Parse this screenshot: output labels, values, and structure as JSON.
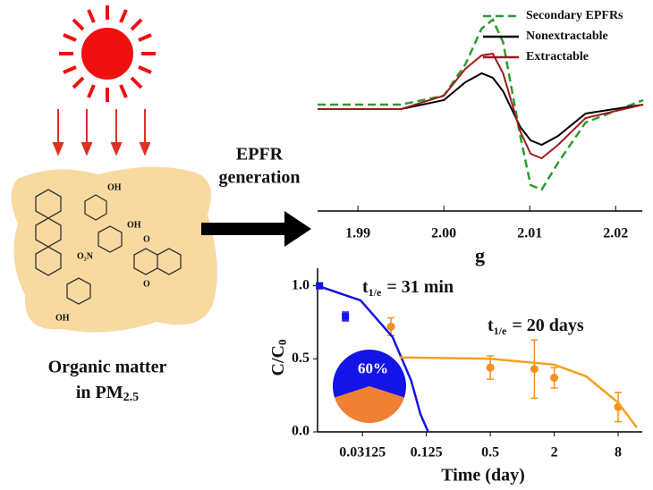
{
  "labels": {
    "process": [
      "EPFR",
      "generation"
    ],
    "matter": "Organic matter",
    "pm": "in PM",
    "pm_sub": "2.5",
    "molecules": [
      "OH",
      "OH",
      "O₂N",
      "OH",
      "O",
      "O"
    ]
  },
  "chart_data": [
    {
      "type": "line",
      "xlabel": "g",
      "xlim": [
        1.9853,
        2.0231
      ],
      "ylim": [
        -1.1,
        1.1
      ],
      "xticks": [
        1.99,
        {
          "value": 2.0,
          "label": "2.00"
        },
        2.01,
        2.02
      ],
      "x": [
        1.9853,
        1.995,
        2.0,
        2.0025,
        2.0044,
        2.0057,
        2.0069,
        2.0089,
        2.0101,
        2.0114,
        2.0133,
        2.0165,
        2.0232
      ],
      "series": [
        {
          "name": "Secondary EPFRs",
          "color": "#2e9a2e",
          "dashed": true,
          "values": [
            0.05,
            0.05,
            0.15,
            0.5,
            0.9,
            1.0,
            0.75,
            -0.3,
            -0.85,
            -0.9,
            -0.6,
            -0.15,
            0.1
          ]
        },
        {
          "name": "Nonextractable",
          "color": "#000000",
          "values": [
            0.0,
            0.0,
            0.1,
            0.3,
            0.4,
            0.35,
            0.2,
            -0.2,
            -0.35,
            -0.4,
            -0.3,
            -0.05,
            0.05
          ]
        },
        {
          "name": "Extractable",
          "color": "#a0191e",
          "values": [
            0.0,
            0.0,
            0.15,
            0.45,
            0.6,
            0.62,
            0.4,
            -0.25,
            -0.5,
            -0.55,
            -0.4,
            -0.1,
            0.05
          ]
        }
      ]
    },
    {
      "type": "scatter",
      "xlabel": "Time (day)",
      "ylabel": "C/C",
      "ylabel_sub": "0",
      "log_x": 2,
      "xlim": [
        0.0118,
        13.5
      ],
      "ylim": [
        0,
        1.12
      ],
      "xticks": [
        0.03125,
        0.125,
        0.5,
        2,
        8
      ],
      "yticks": [
        {
          "value": 0,
          "label": "0.0"
        },
        {
          "value": 0.5,
          "label": "0.5"
        },
        {
          "value": 1,
          "label": "1.0"
        }
      ],
      "annotations": [
        [
          "t",
          "1/e",
          "= 31 min"
        ],
        [
          "t",
          "1/e",
          "= 20 days"
        ]
      ],
      "series": [
        {
          "type": "scatter",
          "marker": "square",
          "color": "#1414e6",
          "x": [
            0.0123,
            0.0216
          ],
          "values": [
            1.0,
            0.79
          ],
          "errors": [
            0.02,
            0.03
          ]
        },
        {
          "type": "scatter",
          "marker": "circle",
          "color": "#f5901e",
          "x": [
            0.058,
            0.5,
            1.3,
            2,
            8
          ],
          "values": [
            0.72,
            0.44,
            0.43,
            0.37,
            0.17
          ],
          "errors": [
            0.06,
            0.08,
            0.2,
            0.07,
            0.1
          ]
        },
        {
          "type": "line",
          "color": "#1414e6",
          "x": [
            0.0118,
            0.03,
            0.06,
            0.09,
            0.11,
            0.13
          ],
          "values": [
            1.0,
            0.9,
            0.65,
            0.35,
            0.12,
            0.0
          ]
        },
        {
          "type": "line",
          "color": "#f5a01e",
          "x": [
            0.07,
            0.5,
            2,
            4,
            8,
            12
          ],
          "values": [
            0.51,
            0.5,
            0.46,
            0.38,
            0.2,
            0.03
          ]
        }
      ]
    },
    {
      "type": "pie",
      "values": [
        60,
        40
      ],
      "value_labels": [
        "60%",
        null
      ],
      "colors": [
        "#1414e6",
        "#f08033"
      ]
    }
  ]
}
